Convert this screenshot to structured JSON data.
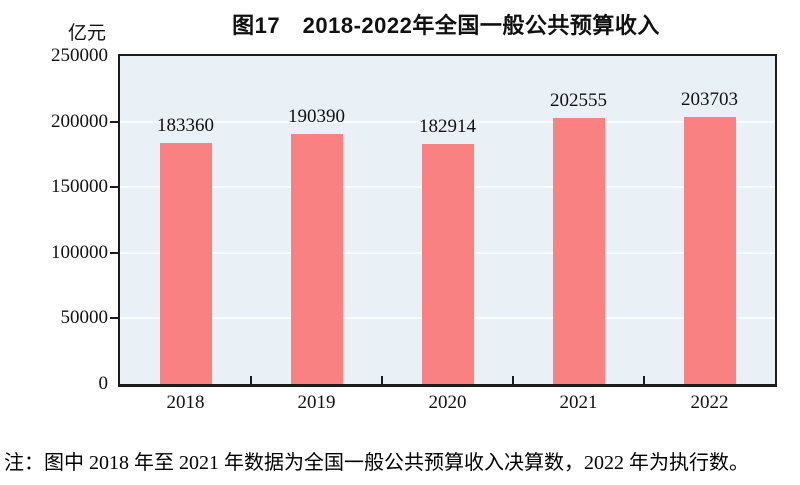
{
  "figure": {
    "title": "图17　2018-2022年全国一般公共预算收入",
    "unit_label": "亿元",
    "note": "注：图中 2018 年至 2021 年数据为全国一般公共预算收入决算数，2022 年为执行数。"
  },
  "chart_data": {
    "type": "bar",
    "title": "图17　2018-2022年全国一般公共预算收入",
    "categories": [
      "2018",
      "2019",
      "2020",
      "2021",
      "2022"
    ],
    "values": [
      183360,
      190390,
      182914,
      202555,
      203703
    ],
    "data_labels": [
      "183360",
      "190390",
      "182914",
      "202555",
      "203703"
    ],
    "xlabel": "",
    "ylabel": "亿元",
    "ylim": [
      0,
      250000
    ],
    "yticks": [
      0,
      50000,
      100000,
      150000,
      200000,
      250000
    ],
    "grid": true,
    "legend": "none",
    "colors": {
      "bar": "#f98181",
      "plot_background": "#e9f0f6",
      "gridline": "#fafdff",
      "axis": "#1b1b1b",
      "text": "#111111"
    }
  }
}
